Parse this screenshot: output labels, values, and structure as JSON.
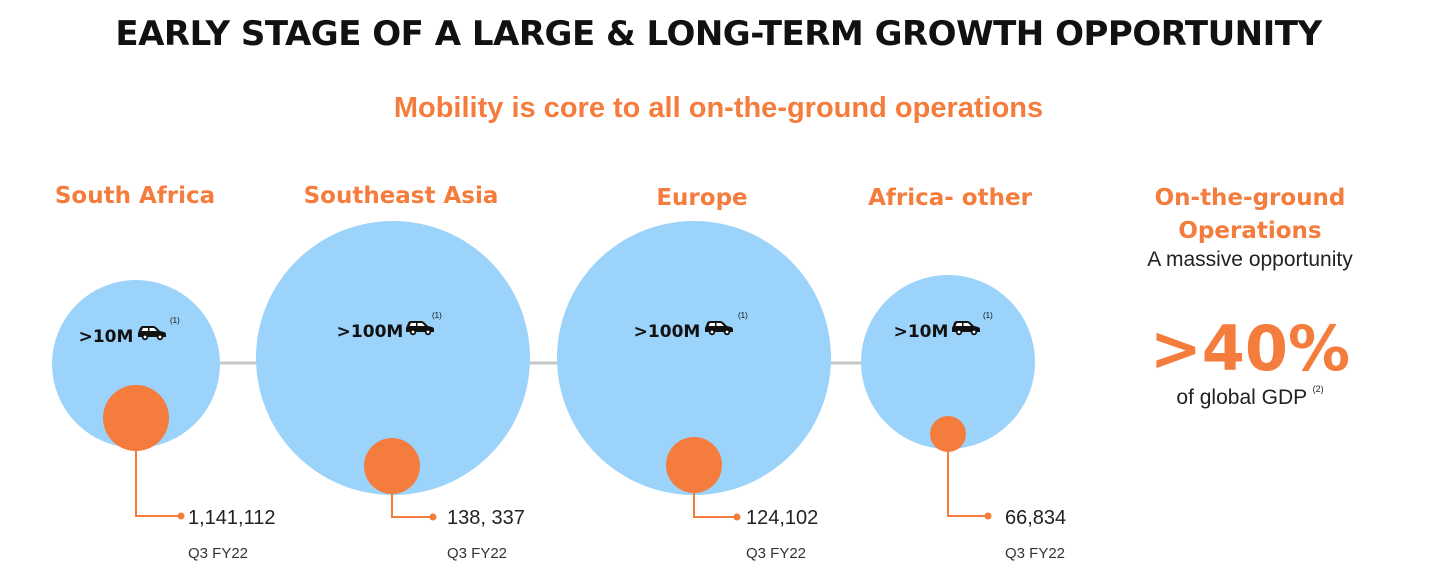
{
  "title": "EARLY STAGE OF A LARGE & LONG-TERM GROWTH OPPORTUNITY",
  "subtitle": "Mobility is core to all on-the-ground operations",
  "colors": {
    "accent": "#F47C3C",
    "big_circle": "#9BD3FA",
    "small_circle": "#F47C3C",
    "connector": "#C8C8C8",
    "text": "#111111"
  },
  "regions": [
    {
      "name": "South Africa",
      "vehicles": ">10M",
      "vehicle_icon": "car-icon",
      "footnote": "(1)",
      "value": "1,141,112",
      "period": "Q3 FY22"
    },
    {
      "name": "Southeast Asia",
      "vehicles": ">100M",
      "vehicle_icon": "car-icon",
      "footnote": "(1)",
      "value": "138, 337",
      "period": "Q3 FY22"
    },
    {
      "name": "Europe",
      "vehicles": ">100M",
      "vehicle_icon": "car-icon",
      "footnote": "(1)",
      "value": "124,102",
      "period": "Q3 FY22"
    },
    {
      "name": "Africa- other",
      "vehicles": ">10M",
      "vehicle_icon": "car-icon",
      "footnote": "(1)",
      "value": "66,834",
      "period": "Q3 FY22"
    }
  ],
  "side_panel": {
    "heading": "On-the-ground\nOperations",
    "subheading": "A massive opportunity",
    "stat": ">40%",
    "stat_label": "of global GDP",
    "stat_footnote": "(2)"
  }
}
